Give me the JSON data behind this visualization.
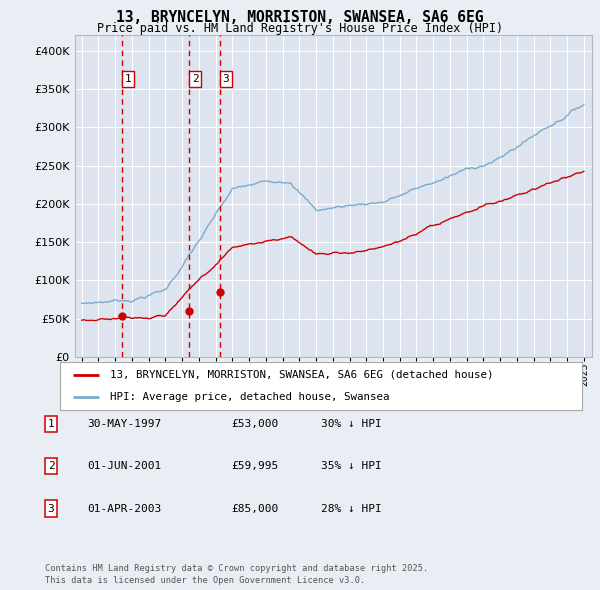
{
  "title_line1": "13, BRYNCELYN, MORRISTON, SWANSEA, SA6 6EG",
  "title_line2": "Price paid vs. HM Land Registry's House Price Index (HPI)",
  "ylim": [
    0,
    420000
  ],
  "yticks": [
    0,
    50000,
    100000,
    150000,
    200000,
    250000,
    300000,
    350000,
    400000
  ],
  "ytick_labels": [
    "£0",
    "£50K",
    "£100K",
    "£150K",
    "£200K",
    "£250K",
    "£300K",
    "£350K",
    "£400K"
  ],
  "xlim_start": 1994.6,
  "xlim_end": 2025.5,
  "background_color": "#e8eef4",
  "plot_bg_color": "#dde4ef",
  "grid_color": "#ffffff",
  "red_color": "#cc0000",
  "blue_color": "#7aabcf",
  "sale_dates": [
    1997.41,
    2001.42,
    2003.25
  ],
  "sale_prices": [
    53000,
    59995,
    85000
  ],
  "sale_labels": [
    "1",
    "2",
    "3"
  ],
  "legend_red_label": "13, BRYNCELYN, MORRISTON, SWANSEA, SA6 6EG (detached house)",
  "legend_blue_label": "HPI: Average price, detached house, Swansea",
  "table_entries": [
    {
      "num": "1",
      "date": "30-MAY-1997",
      "price": "£53,000",
      "pct": "30% ↓ HPI"
    },
    {
      "num": "2",
      "date": "01-JUN-2001",
      "price": "£59,995",
      "pct": "35% ↓ HPI"
    },
    {
      "num": "3",
      "date": "01-APR-2003",
      "price": "£85,000",
      "pct": "28% ↓ HPI"
    }
  ],
  "footer": "Contains HM Land Registry data © Crown copyright and database right 2025.\nThis data is licensed under the Open Government Licence v3.0."
}
